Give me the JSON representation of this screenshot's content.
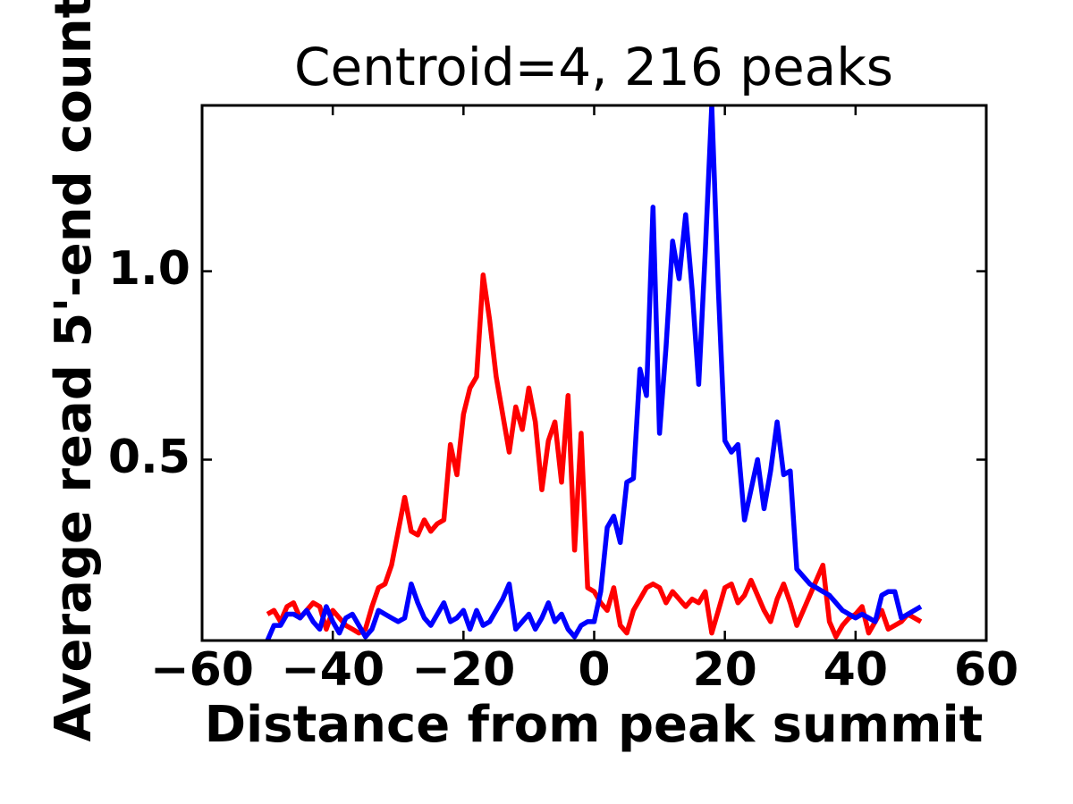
{
  "figure": {
    "background": "#ffffff",
    "axis_color": "#000000"
  },
  "chart_data": {
    "type": "line",
    "title": "Centroid=4, 216 peaks",
    "xlabel": "Distance from peak summit",
    "ylabel": "Average read 5'-end count",
    "xlim": [
      -60,
      60
    ],
    "ylim": [
      0.02,
      1.44
    ],
    "xticks": [
      -60,
      -40,
      -20,
      0,
      20,
      40,
      60
    ],
    "xtick_labels": [
      "−60",
      "−40",
      "−20",
      "0",
      "20",
      "40",
      "60"
    ],
    "yticks": [
      0.5,
      1.0
    ],
    "ytick_labels": [
      "0.5",
      "1.0"
    ],
    "grid": false,
    "legend": null,
    "x": [
      -50,
      -49,
      -48,
      -47,
      -46,
      -45,
      -44,
      -43,
      -42,
      -41,
      -40,
      -39,
      -38,
      -37,
      -36,
      -35,
      -34,
      -33,
      -32,
      -31,
      -30,
      -29,
      -28,
      -27,
      -26,
      -25,
      -24,
      -23,
      -22,
      -21,
      -20,
      -19,
      -18,
      -17,
      -16,
      -15,
      -14,
      -13,
      -12,
      -11,
      -10,
      -9,
      -8,
      -7,
      -6,
      -5,
      -4,
      -3,
      -2,
      -1,
      0,
      1,
      2,
      3,
      4,
      5,
      6,
      7,
      8,
      9,
      10,
      11,
      12,
      13,
      14,
      15,
      16,
      17,
      18,
      19,
      20,
      21,
      22,
      23,
      24,
      25,
      26,
      27,
      28,
      29,
      30,
      31,
      32,
      33,
      34,
      35,
      36,
      37,
      38,
      39,
      40,
      41,
      42,
      43,
      44,
      45,
      46,
      47,
      48,
      49,
      50
    ],
    "series": [
      {
        "name": "red",
        "color": "#ff0000",
        "values": [
          0.09,
          0.1,
          0.07,
          0.11,
          0.12,
          0.08,
          0.1,
          0.12,
          0.11,
          0.05,
          0.1,
          0.08,
          0.06,
          0.05,
          0.04,
          0.05,
          0.11,
          0.16,
          0.17,
          0.22,
          0.31,
          0.4,
          0.31,
          0.3,
          0.34,
          0.31,
          0.33,
          0.34,
          0.54,
          0.46,
          0.62,
          0.69,
          0.72,
          0.99,
          0.87,
          0.72,
          0.62,
          0.52,
          0.64,
          0.58,
          0.69,
          0.6,
          0.42,
          0.55,
          0.6,
          0.44,
          0.67,
          0.26,
          0.57,
          0.16,
          0.15,
          0.12,
          0.1,
          0.16,
          0.06,
          0.04,
          0.1,
          0.13,
          0.16,
          0.17,
          0.16,
          0.12,
          0.15,
          0.13,
          0.11,
          0.13,
          0.12,
          0.15,
          0.04,
          0.1,
          0.16,
          0.17,
          0.12,
          0.14,
          0.18,
          0.14,
          0.1,
          0.07,
          0.13,
          0.17,
          0.12,
          0.06,
          0.1,
          0.14,
          0.18,
          0.22,
          0.07,
          0.03,
          0.06,
          0.08,
          0.09,
          0.11,
          0.04,
          0.07,
          0.1,
          0.05,
          0.06,
          0.07,
          0.09,
          0.08,
          0.07
        ]
      },
      {
        "name": "blue",
        "color": "#0000ff",
        "values": [
          0.02,
          0.06,
          0.06,
          0.09,
          0.09,
          0.08,
          0.1,
          0.07,
          0.05,
          0.11,
          0.07,
          0.04,
          0.08,
          0.09,
          0.06,
          0.03,
          0.05,
          0.1,
          0.09,
          0.08,
          0.07,
          0.08,
          0.17,
          0.12,
          0.08,
          0.06,
          0.09,
          0.12,
          0.07,
          0.08,
          0.1,
          0.05,
          0.1,
          0.06,
          0.07,
          0.1,
          0.13,
          0.17,
          0.05,
          0.07,
          0.09,
          0.05,
          0.08,
          0.12,
          0.07,
          0.09,
          0.05,
          0.03,
          0.06,
          0.07,
          0.07,
          0.15,
          0.32,
          0.35,
          0.28,
          0.44,
          0.45,
          0.74,
          0.67,
          1.17,
          0.57,
          0.8,
          1.08,
          0.98,
          1.15,
          0.95,
          0.7,
          1.05,
          1.44,
          0.95,
          0.55,
          0.52,
          0.54,
          0.34,
          0.42,
          0.5,
          0.37,
          0.47,
          0.6,
          0.46,
          0.47,
          0.21,
          0.19,
          0.17,
          0.16,
          0.15,
          0.14,
          0.12,
          0.1,
          0.09,
          0.08,
          0.09,
          0.08,
          0.07,
          0.14,
          0.15,
          0.15,
          0.08,
          0.09,
          0.1,
          0.11
        ]
      }
    ]
  }
}
